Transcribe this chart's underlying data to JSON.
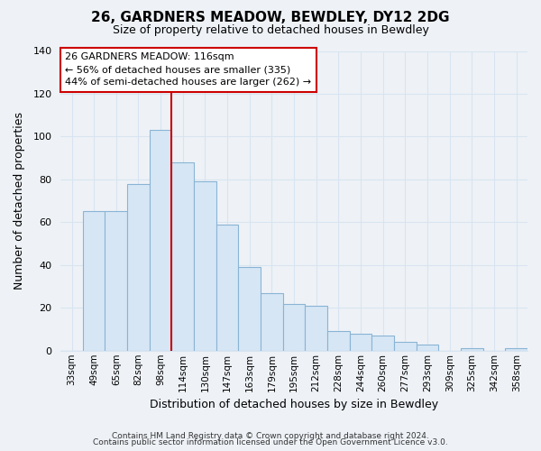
{
  "title": "26, GARDNERS MEADOW, BEWDLEY, DY12 2DG",
  "subtitle": "Size of property relative to detached houses in Bewdley",
  "xlabel": "Distribution of detached houses by size in Bewdley",
  "ylabel": "Number of detached properties",
  "bar_labels": [
    "33sqm",
    "49sqm",
    "65sqm",
    "82sqm",
    "98sqm",
    "114sqm",
    "130sqm",
    "147sqm",
    "163sqm",
    "179sqm",
    "195sqm",
    "212sqm",
    "228sqm",
    "244sqm",
    "260sqm",
    "277sqm",
    "293sqm",
    "309sqm",
    "325sqm",
    "342sqm",
    "358sqm"
  ],
  "bar_values": [
    0,
    65,
    65,
    78,
    103,
    88,
    79,
    59,
    39,
    27,
    22,
    21,
    9,
    8,
    7,
    4,
    3,
    0,
    1,
    0,
    1
  ],
  "bar_color": "#d6e6f5",
  "bar_edge_color": "#8ab4d4",
  "vline_color": "#cc0000",
  "vline_index": 5,
  "ylim": [
    0,
    140
  ],
  "yticks": [
    0,
    20,
    40,
    60,
    80,
    100,
    120,
    140
  ],
  "annotation_text": "26 GARDNERS MEADOW: 116sqm\n← 56% of detached houses are smaller (335)\n44% of semi-detached houses are larger (262) →",
  "annotation_box_color": "#ffffff",
  "annotation_border_color": "#cc0000",
  "footer_line1": "Contains HM Land Registry data © Crown copyright and database right 2024.",
  "footer_line2": "Contains public sector information licensed under the Open Government Licence v3.0.",
  "background_color": "#eef2f7",
  "grid_color": "#d8e4f0",
  "title_fontsize": 11,
  "subtitle_fontsize": 9,
  "ylabel_fontsize": 9,
  "xlabel_fontsize": 9
}
